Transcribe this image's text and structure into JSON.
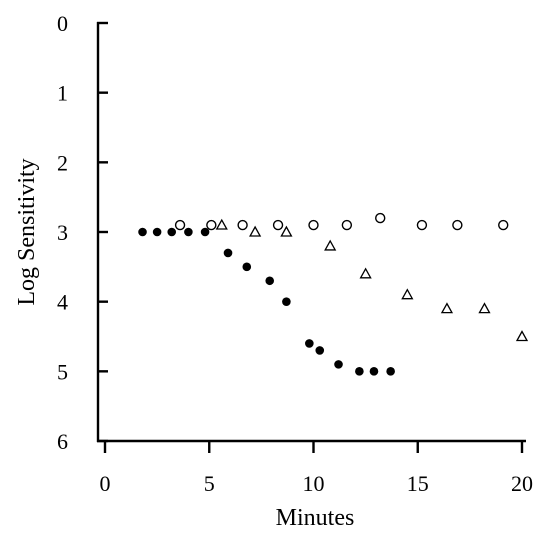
{
  "chart_data": {
    "type": "scatter",
    "xlabel": "Minutes",
    "ylabel": "Log Sensitivity",
    "xlim": [
      0,
      20
    ],
    "ylim": [
      0,
      6
    ],
    "y_inverted": true,
    "grid": false,
    "x_ticks": [
      "0",
      "5",
      "10",
      "15",
      "20"
    ],
    "y_ticks": [
      "0",
      "1",
      "2",
      "3",
      "4",
      "5",
      "6"
    ],
    "series": [
      {
        "marker": "filled-circle",
        "color": "#000000",
        "points": [
          [
            1.8,
            3.0
          ],
          [
            2.5,
            3.0
          ],
          [
            3.2,
            3.0
          ],
          [
            4.0,
            3.0
          ],
          [
            4.8,
            3.0
          ],
          [
            5.9,
            3.3
          ],
          [
            6.8,
            3.5
          ],
          [
            7.9,
            3.7
          ],
          [
            8.7,
            4.0
          ],
          [
            9.8,
            4.6
          ],
          [
            10.3,
            4.7
          ],
          [
            11.2,
            4.9
          ],
          [
            12.2,
            5.0
          ],
          [
            12.9,
            5.0
          ],
          [
            13.7,
            5.0
          ]
        ]
      },
      {
        "marker": "open-circle",
        "color": "#000000",
        "points": [
          [
            3.6,
            2.9
          ],
          [
            5.1,
            2.9
          ],
          [
            6.6,
            2.9
          ],
          [
            8.3,
            2.9
          ],
          [
            10.0,
            2.9
          ],
          [
            11.6,
            2.9
          ],
          [
            13.2,
            2.8
          ],
          [
            15.2,
            2.9
          ],
          [
            16.9,
            2.9
          ],
          [
            19.1,
            2.9
          ]
        ]
      },
      {
        "marker": "open-triangle",
        "color": "#000000",
        "points": [
          [
            5.6,
            2.9
          ],
          [
            7.2,
            3.0
          ],
          [
            8.7,
            3.0
          ],
          [
            10.8,
            3.2
          ],
          [
            12.5,
            3.6
          ],
          [
            14.5,
            3.9
          ],
          [
            16.4,
            4.1
          ],
          [
            18.2,
            4.1
          ],
          [
            20.0,
            4.5
          ]
        ]
      }
    ]
  }
}
